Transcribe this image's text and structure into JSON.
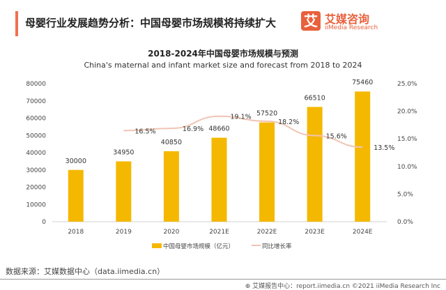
{
  "header": {
    "title": "母婴行业发展趋势分析：中国母婴市场规模将持续扩大",
    "logo_cn": "艾媒咨询",
    "logo_en": "iiMedia Research",
    "logo_mark": "艾"
  },
  "chart_data": {
    "type": "bar+line",
    "title": "2018-2024年中国母婴市场规模与预测",
    "subtitle": "China's maternal and infant market size and forecast from 2018 to 2024",
    "categories": [
      "2018",
      "2019",
      "2020",
      "2021E",
      "2022E",
      "2023E",
      "2024E"
    ],
    "series": [
      {
        "name": "中国母婴市场规模（亿元）",
        "type": "bar",
        "axis": "left",
        "color": "#f5b800",
        "values": [
          30000,
          34950,
          40850,
          48660,
          57520,
          66510,
          75460
        ],
        "labels": [
          "30000",
          "34950",
          "40850",
          "48660",
          "57520",
          "66510",
          "75460"
        ]
      },
      {
        "name": "同比增长率",
        "type": "line",
        "axis": "right",
        "color": "#f0c4b4",
        "values": [
          null,
          16.5,
          16.9,
          19.1,
          18.2,
          15.6,
          13.5
        ],
        "labels": [
          "",
          "16.5%",
          "16.9%",
          "19.1%",
          "18.2%",
          "15.6%",
          "13.5%"
        ]
      }
    ],
    "ylim_left": [
      0,
      80000
    ],
    "yticks_left": [
      "0",
      "10000",
      "20000",
      "30000",
      "40000",
      "50000",
      "60000",
      "70000",
      "80000"
    ],
    "ylim_right": [
      0,
      25
    ],
    "yticks_right": [
      "0.0%",
      "5.0%",
      "10.0%",
      "15.0%",
      "20.0%",
      "25.0%"
    ],
    "legend": "bottom",
    "grid": false
  },
  "source": "数据来源：艾媒数据中心（data.iimedia.cn）",
  "footer": "艾媒报告中心：report.iimedia.cn ©2021 iiMedia Research Inc"
}
